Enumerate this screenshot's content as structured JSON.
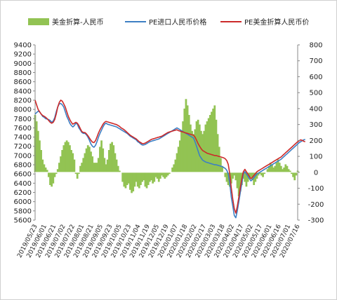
{
  "chart_data": {
    "type": "line",
    "legend": {
      "placement": "top",
      "entries": [
        {
          "label": "美金折算-人民币",
          "kind": "area",
          "color": "#92c353"
        },
        {
          "label": "PE进口人民币价格",
          "kind": "line",
          "color": "#3d7fc4"
        },
        {
          "label": "PE美金折算人民币价",
          "kind": "line",
          "color": "#cc2a2a"
        }
      ]
    },
    "left_axis": {
      "range": [
        5600,
        9400
      ],
      "ticks": [
        "5600",
        "5800",
        "6000",
        "6200",
        "6400",
        "6600",
        "6800",
        "7000",
        "7200",
        "7400",
        "7600",
        "7800",
        "8000",
        "8200",
        "8400",
        "8600",
        "8800",
        "9000",
        "9200",
        "9400"
      ]
    },
    "right_axis": {
      "range": [
        -300,
        800
      ],
      "ticks": [
        "-300",
        "-200",
        "-100",
        "0",
        "100",
        "200",
        "300",
        "400",
        "500",
        "600",
        "700",
        "800"
      ]
    },
    "x_ticks": [
      "2019/05/23",
      "2019/06/01",
      "2019/06/21",
      "2019/07/02",
      "2019/07/22",
      "2019/08/01",
      "2019/08/21",
      "2019/09/05",
      "2019/09/23",
      "2019/10/05",
      "2019/10/23",
      "2019/11/04",
      "2019/11/19",
      "2019/12/05",
      "2019/12/19",
      "2020/01/07",
      "2020/01/18",
      "2020/02/02",
      "2020/02/17",
      "2020/03/03",
      "2020/03/18",
      "2020/04/02",
      "2020/04/17",
      "2020/05/02",
      "2020/05/17",
      "2020/06/01",
      "2020/06/16",
      "2020/07/01",
      "2020/07/16"
    ],
    "series": [
      {
        "name": "美金折算-人民币",
        "axis": "right",
        "kind": "area",
        "color": "#92c353",
        "values": [
          360,
          320,
          260,
          200,
          140,
          80,
          50,
          30,
          15,
          -30,
          -80,
          -90,
          -70,
          -30,
          -10,
          20,
          60,
          100,
          140,
          170,
          190,
          200,
          190,
          170,
          140,
          120,
          80,
          -10,
          -40,
          -10,
          40,
          60,
          90,
          120,
          150,
          170,
          160,
          130,
          100,
          60,
          60,
          60,
          90,
          160,
          200,
          150,
          90,
          50,
          80,
          140,
          180,
          190,
          170,
          120,
          80,
          40,
          10,
          0,
          -60,
          -90,
          -100,
          -80,
          -70,
          -110,
          -130,
          -120,
          -90,
          -60,
          -90,
          -100,
          -80,
          -60,
          -50,
          -90,
          -100,
          -80,
          -60,
          -50,
          -70,
          -60,
          -30,
          -40,
          -60,
          -40,
          -20,
          -30,
          -40,
          -30,
          -20,
          -10,
          0,
          30,
          50,
          80,
          120,
          160,
          200,
          260,
          320,
          400,
          460,
          420,
          360,
          300,
          260,
          240,
          270,
          320,
          330,
          300,
          260,
          240,
          260,
          300,
          320,
          340,
          360,
          380,
          400,
          420,
          330,
          240,
          160,
          90,
          40,
          0,
          -30,
          -60,
          -80,
          -90,
          -70,
          -40,
          -20,
          -50,
          -100,
          -150,
          -120,
          -80,
          -40,
          -60,
          -90,
          -60,
          -40,
          -30,
          -50,
          -80,
          -60,
          -40,
          -20,
          -10,
          -20,
          -30,
          -10,
          0,
          20,
          40,
          60,
          50,
          30,
          40,
          60,
          80,
          60,
          40,
          20,
          30,
          50,
          40,
          20,
          10,
          -10,
          -30,
          -50,
          -20,
          10
        ]
      },
      {
        "name": "PE进口人民币价格",
        "axis": "left",
        "kind": "line",
        "color": "#3d7fc4",
        "values": [
          7900,
          7930,
          7960,
          7950,
          7900,
          7850,
          7830,
          7800,
          7790,
          7780,
          7760,
          7720,
          7750,
          7820,
          7950,
          8050,
          8120,
          8130,
          8100,
          8050,
          7950,
          7850,
          7780,
          7700,
          7650,
          7620,
          7650,
          7700,
          7680,
          7600,
          7550,
          7500,
          7480,
          7480,
          7450,
          7400,
          7330,
          7250,
          7200,
          7180,
          7220,
          7300,
          7400,
          7480,
          7550,
          7620,
          7680,
          7700,
          7680,
          7670,
          7660,
          7650,
          7640,
          7630,
          7620,
          7600,
          7580,
          7560,
          7540,
          7520,
          7500,
          7480,
          7450,
          7420,
          7400,
          7380,
          7360,
          7340,
          7300,
          7280,
          7250,
          7230,
          7230,
          7240,
          7260,
          7280,
          7300,
          7310,
          7320,
          7330,
          7340,
          7350,
          7360,
          7380,
          7400,
          7420,
          7440,
          7460,
          7480,
          7500,
          7520,
          7540,
          7560,
          7580,
          7600,
          7580,
          7560,
          7540,
          7520,
          7500,
          7480,
          7460,
          7440,
          7420,
          7400,
          7380,
          7300,
          7200,
          7100,
          7000,
          6950,
          6900,
          6880,
          6860,
          6850,
          6840,
          6830,
          6820,
          6810,
          6800,
          6800,
          6790,
          6780,
          6770,
          6760,
          6740,
          6720,
          6680,
          6600,
          6400,
          6100,
          5900,
          5700,
          5650,
          5800,
          6000,
          6200,
          6400,
          6600,
          6650,
          6600,
          6550,
          6500,
          6450,
          6480,
          6520,
          6560,
          6600,
          6620,
          6640,
          6660,
          6680,
          6700,
          6720,
          6740,
          6760,
          6780,
          6800,
          6820,
          6840,
          6860,
          6880,
          6900,
          6920,
          6950,
          6980,
          7010,
          7040,
          7070,
          7100,
          7130,
          7160,
          7190,
          7220,
          7250,
          7280,
          7300,
          7320,
          7340,
          7350
        ]
      },
      {
        "name": "PE美金折算人民币价",
        "axis": "left",
        "kind": "line",
        "color": "#cc2a2a",
        "values": [
          8200,
          8100,
          8000,
          7950,
          7900,
          7870,
          7850,
          7830,
          7800,
          7760,
          7720,
          7700,
          7720,
          7780,
          7900,
          8050,
          8150,
          8200,
          8180,
          8120,
          8050,
          7950,
          7850,
          7780,
          7720,
          7680,
          7700,
          7720,
          7700,
          7650,
          7580,
          7520,
          7500,
          7500,
          7470,
          7430,
          7380,
          7330,
          7290,
          7280,
          7320,
          7400,
          7490,
          7560,
          7620,
          7680,
          7720,
          7740,
          7730,
          7720,
          7710,
          7700,
          7690,
          7680,
          7670,
          7650,
          7630,
          7600,
          7580,
          7560,
          7530,
          7500,
          7470,
          7440,
          7420,
          7400,
          7380,
          7360,
          7330,
          7300,
          7280,
          7260,
          7260,
          7270,
          7290,
          7310,
          7330,
          7350,
          7360,
          7370,
          7380,
          7390,
          7400,
          7410,
          7420,
          7440,
          7460,
          7480,
          7500,
          7510,
          7520,
          7530,
          7540,
          7550,
          7560,
          7540,
          7530,
          7520,
          7510,
          7500,
          7490,
          7480,
          7470,
          7460,
          7450,
          7440,
          7400,
          7330,
          7260,
          7200,
          7150,
          7110,
          7090,
          7070,
          7050,
          7040,
          7030,
          7020,
          7010,
          7000,
          7000,
          6990,
          6980,
          6970,
          6960,
          6950,
          6930,
          6890,
          6810,
          6600,
          6300,
          6050,
          5850,
          5750,
          5900,
          6100,
          6300,
          6500,
          6650,
          6700,
          6650,
          6600,
          6550,
          6500,
          6530,
          6570,
          6610,
          6650,
          6670,
          6690,
          6710,
          6730,
          6750,
          6770,
          6790,
          6810,
          6830,
          6850,
          6870,
          6890,
          6910,
          6930,
          6950,
          6970,
          7000,
          7030,
          7060,
          7090,
          7120,
          7150,
          7180,
          7210,
          7240,
          7270,
          7300,
          7320,
          7340,
          7330,
          7310,
          7300
        ]
      }
    ]
  }
}
